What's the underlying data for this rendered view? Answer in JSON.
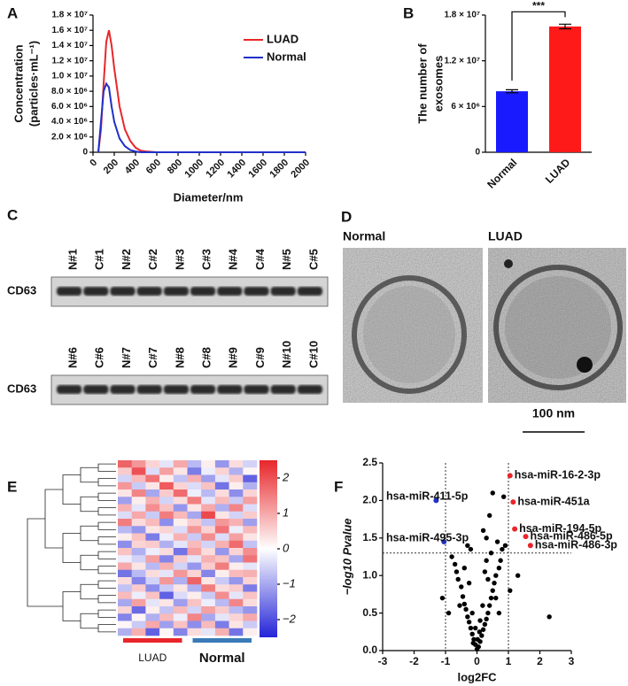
{
  "chart_data": [
    {
      "type": "line",
      "panel": "A",
      "ylabel": [
        "Concentration",
        "(particles·mL⁻¹)"
      ],
      "xlabel": "Diameter/nm",
      "x": [
        50,
        75,
        100,
        125,
        150,
        175,
        200,
        250,
        300,
        350,
        400,
        450,
        500,
        600,
        800,
        1000,
        1200,
        1400,
        1600,
        1800,
        2000
      ],
      "series": [
        {
          "name": "LUAD",
          "color": "#e8262a",
          "values": [
            0,
            3000000,
            9000000,
            14500000,
            16000000,
            14000000,
            11000000,
            6000000,
            3000000,
            1500000,
            600000,
            200000,
            100000,
            0,
            0,
            0,
            0,
            0,
            0,
            0,
            0
          ]
        },
        {
          "name": "Normal",
          "color": "#2030c8",
          "values": [
            0,
            4000000,
            8000000,
            9000000,
            8500000,
            6000000,
            4000000,
            1800000,
            800000,
            300000,
            100000,
            0,
            0,
            0,
            0,
            0,
            0,
            0,
            0,
            0,
            0
          ]
        }
      ],
      "xlim": [
        0,
        2000
      ],
      "xticks": [
        0,
        200,
        400,
        600,
        800,
        1000,
        1200,
        1400,
        1600,
        1800,
        2000
      ],
      "ylim": [
        0,
        18000000
      ],
      "yticks": [
        0,
        {
          "value": 2000000,
          "label": "2.0 × 10⁶"
        },
        {
          "value": 4000000,
          "label": "4.0 × 10⁶"
        },
        {
          "value": 6000000,
          "label": "6.0 × 10⁶"
        },
        {
          "value": 8000000,
          "label": "8.0 × 10⁶"
        },
        {
          "value": 10000000,
          "label": "1.0 × 10⁷"
        },
        {
          "value": 12000000,
          "label": "1.2 × 10⁷"
        },
        {
          "value": 14000000,
          "label": "1.4 × 10⁷"
        },
        {
          "value": 16000000,
          "label": "1.6 × 10⁷"
        },
        {
          "value": 18000000,
          "label": "1.8 × 10⁷"
        }
      ],
      "legend": "top-right"
    },
    {
      "type": "bar",
      "panel": "B",
      "ylabel": [
        "The number of",
        "exosomes"
      ],
      "categories": [
        "Normal",
        "LUAD"
      ],
      "values": [
        8000000,
        16500000
      ],
      "errors": [
        200000,
        300000
      ],
      "colors": [
        "#1a1aff",
        "#ff1a1a"
      ],
      "ylim": [
        0,
        18000000
      ],
      "yticks": [
        0,
        {
          "value": 6000000,
          "label": "6 × 10⁶"
        },
        {
          "value": 12000000,
          "label": "1.2 × 10⁷"
        },
        {
          "value": 18000000,
          "label": "1.8 × 10⁷"
        }
      ],
      "significance": "***"
    },
    {
      "type": "scatter",
      "panel": "F",
      "xlabel": "log2FC",
      "ylabel": "−log10 Pvalue",
      "x": [
        0,
        0.05,
        -0.05,
        0.1,
        -0.1,
        0.15,
        -0.15,
        0.2,
        -0.2,
        0.25,
        -0.25,
        0.3,
        -0.3,
        0.35,
        -0.35,
        0.4,
        -0.4,
        0.45,
        -0.45,
        0.5,
        -0.5,
        0.55,
        -0.6,
        0.6,
        -0.65,
        0.7,
        -0.7,
        0.75,
        -0.8,
        0.8,
        -0.3,
        0.2,
        0.4,
        0.5,
        0.85,
        0.3,
        0.65,
        -0.2,
        0.9,
        1.3,
        2.3,
        1.05,
        -1.1,
        -0.9,
        0.1,
        -0.05,
        0.02,
        0.08,
        -0.12,
        0.18,
        -0.25,
        0.3,
        0.45,
        -0.55,
        0.6,
        0.7,
        -0.15,
        0.35,
        0.25,
        -0.4
      ],
      "values": [
        0.02,
        0.05,
        0.08,
        0.12,
        0.15,
        0.2,
        0.22,
        0.28,
        0.3,
        0.35,
        0.38,
        0.42,
        0.45,
        0.5,
        0.55,
        0.6,
        0.62,
        0.7,
        0.72,
        0.8,
        0.85,
        0.9,
        0.95,
        1.0,
        1.05,
        1.1,
        1.15,
        1.2,
        1.25,
        1.35,
        1.4,
        1.6,
        1.8,
        2.1,
        2.05,
        1.5,
        1.45,
        1.35,
        1.4,
        1.0,
        0.45,
        0.8,
        0.7,
        0.5,
        0.4,
        0.3,
        0.15,
        0.25,
        0.1,
        0.6,
        0.9,
        1.2,
        1.3,
        0.6,
        0.7,
        0.5,
        0.5,
        0.95,
        1.05,
        1.1
      ],
      "color": "#000000",
      "annotations": [
        {
          "text": "hsa-miR-16-2-3p",
          "x": 1.05,
          "y": 2.33,
          "color": "#e8262a"
        },
        {
          "text": "hsa-miR-451a",
          "x": 1.15,
          "y": 1.98,
          "color": "#e8262a"
        },
        {
          "text": "hsa-miR-194-5p",
          "x": 1.2,
          "y": 1.62,
          "color": "#e8262a"
        },
        {
          "text": "hsa-miR-486-5p",
          "x": 1.55,
          "y": 1.52,
          "color": "#e8262a"
        },
        {
          "text": "hsa-miR-486-3p",
          "x": 1.7,
          "y": 1.4,
          "color": "#e8262a"
        },
        {
          "text": "hsa-miR-411-5p",
          "x": -1.3,
          "y": 2.0,
          "color": "#2030c8"
        },
        {
          "text": "hsa-miR-495-3p",
          "x": -1.05,
          "y": 1.45,
          "color": "#2030c8"
        }
      ],
      "thresholds": {
        "x": [
          -1,
          1
        ],
        "y": 1.3
      },
      "xlim": [
        -3,
        3
      ],
      "xticks": [
        -3,
        -2,
        -1,
        0,
        1,
        2,
        3
      ],
      "ylim": [
        0,
        2.5
      ],
      "yticks": [
        {
          "value": 0,
          "label": "0.0"
        },
        0.5,
        {
          "value": 1,
          "label": "1.0"
        },
        1.5,
        {
          "value": 2,
          "label": "2.0"
        },
        2.5
      ]
    },
    {
      "type": "heatmap",
      "panel": "E",
      "values": [
        [
          1.8,
          1.2,
          0.5,
          -0.3,
          1.0,
          -0.8,
          0.2,
          -1.2,
          0.4,
          -0.5
        ],
        [
          0.6,
          2.0,
          -0.4,
          1.1,
          0.3,
          -1.5,
          -0.2,
          0.5,
          -0.9,
          0.1
        ],
        [
          -0.5,
          0.8,
          1.6,
          0.2,
          -0.7,
          0.9,
          -1.1,
          -0.3,
          0.6,
          -1.8
        ],
        [
          1.2,
          -0.6,
          0.3,
          1.9,
          0.5,
          -0.4,
          0.7,
          -1.6,
          0.2,
          -0.9
        ],
        [
          0.3,
          1.4,
          -1.0,
          0.6,
          1.7,
          -0.2,
          -0.8,
          0.4,
          -1.3,
          0.5
        ],
        [
          -1.1,
          0.2,
          0.9,
          -0.5,
          0.4,
          1.5,
          -0.3,
          0.8,
          -0.6,
          1.1
        ],
        [
          0.9,
          -0.3,
          1.3,
          0.7,
          -1.2,
          0.3,
          1.0,
          -0.9,
          1.4,
          -0.4
        ],
        [
          -0.4,
          1.0,
          -0.6,
          1.5,
          0.8,
          -1.0,
          2.1,
          0.3,
          -0.5,
          0.6
        ],
        [
          1.5,
          0.4,
          0.8,
          -1.3,
          0.2,
          0.6,
          -0.7,
          1.2,
          0.9,
          -1.1
        ],
        [
          -0.8,
          -1.2,
          0.3,
          0.5,
          -0.4,
          1.2,
          0.5,
          1.6,
          -0.2,
          0.8
        ],
        [
          0.2,
          0.7,
          -1.5,
          -0.2,
          0.9,
          -0.6,
          1.3,
          -0.4,
          1.1,
          0.3
        ],
        [
          -1.3,
          0.5,
          0.6,
          -0.9,
          -0.3,
          0.8,
          -0.5,
          0.9,
          1.7,
          -0.7
        ],
        [
          0.7,
          -0.9,
          -0.2,
          0.4,
          -1.6,
          1.1,
          0.4,
          -1.2,
          0.5,
          1.3
        ],
        [
          -0.2,
          -0.5,
          1.1,
          -1.4,
          0.6,
          -0.3,
          0.9,
          0.7,
          -1.0,
          1.6
        ],
        [
          1.0,
          0.3,
          -0.8,
          0.9,
          -0.5,
          -1.2,
          0.6,
          1.5,
          0.2,
          -0.3
        ],
        [
          -1.6,
          -0.8,
          0.4,
          -0.3,
          1.2,
          0.5,
          -1.4,
          0.2,
          0.8,
          0.9
        ],
        [
          0.4,
          -1.4,
          -0.5,
          1.2,
          -0.9,
          1.8,
          0.3,
          -0.6,
          -1.2,
          0.5
        ],
        [
          -0.7,
          0.6,
          -1.3,
          -0.6,
          0.3,
          -0.9,
          1.5,
          0.4,
          0.6,
          -1.5
        ],
        [
          0.8,
          -0.2,
          0.7,
          -1.8,
          -0.4,
          0.2,
          -0.6,
          1.3,
          -0.3,
          0.7
        ],
        [
          -1.0,
          1.1,
          -0.3,
          0.3,
          -1.1,
          0.7,
          -0.2,
          -0.8,
          1.4,
          0.4
        ],
        [
          0.5,
          -1.7,
          0.2,
          -0.7,
          0.8,
          -0.5,
          1.1,
          0.6,
          -0.8,
          -1.2
        ],
        [
          -1.4,
          0.1,
          -0.9,
          0.8,
          -0.2,
          1.4,
          -1.0,
          -0.3,
          0.5,
          1.0
        ],
        [
          0.1,
          -0.6,
          1.0,
          -1.1,
          0.7,
          -1.3,
          0.8,
          -1.5,
          0.3,
          -0.6
        ],
        [
          -0.9,
          0.9,
          -1.8,
          0.1,
          -1.4,
          0.4,
          -0.3,
          0.9,
          -1.6,
          0.2
        ]
      ],
      "colors": [
        "#2424d8",
        "#ffffff",
        "#e8262a"
      ],
      "zlim": [
        -2.5,
        2.5
      ],
      "zticks": [
        2,
        1,
        0,
        {
          "value": -1,
          "label": "−1"
        },
        {
          "value": -2,
          "label": "−2"
        }
      ],
      "groups": [
        {
          "name": "LUAD",
          "color": "#e8262a",
          "columns": 5
        },
        {
          "name": "Normal",
          "color": "#3a7ab8",
          "columns": 5
        }
      ]
    }
  ],
  "blot": {
    "panel": "C",
    "rows": [
      {
        "marker": "CD63",
        "lanes": [
          "N#1",
          "C#1",
          "N#2",
          "C#2",
          "N#3",
          "C#3",
          "N#4",
          "C#4",
          "N#5",
          "C#5"
        ]
      },
      {
        "marker": "CD63",
        "lanes": [
          "N#6",
          "C#6",
          "N#7",
          "C#7",
          "N#8",
          "C#8",
          "N#9",
          "C#9",
          "N#10",
          "C#10"
        ]
      }
    ]
  },
  "micrographs": {
    "panel": "D",
    "images": [
      "Normal",
      "LUAD"
    ],
    "scale_bar": "100 nm"
  }
}
